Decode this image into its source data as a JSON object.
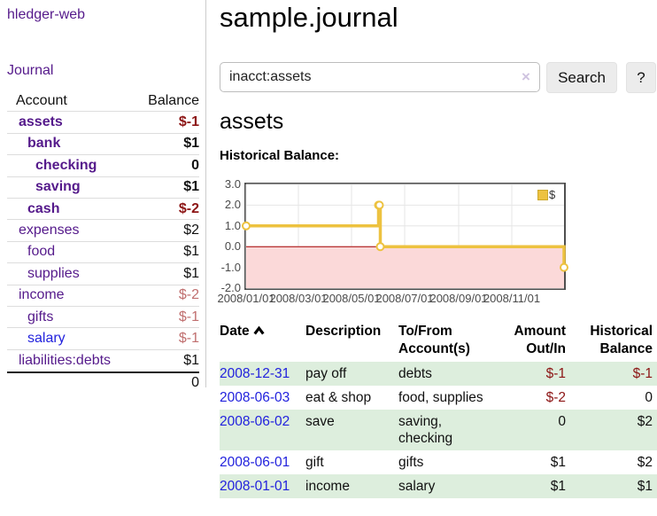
{
  "app": {
    "brand": "hledger-web"
  },
  "colors": {
    "link_purple": "#551a8b",
    "link_blue": "#2222dd",
    "negative_strong": "#8c1414",
    "negative_muted": "#c06f6f",
    "row_green": "#ddeedd",
    "chart_line": "#EDC240"
  },
  "sidebar": {
    "journal_link": "Journal",
    "accounts": {
      "header_account": "Account",
      "header_balance": "Balance",
      "rows": [
        {
          "name": "assets",
          "balance": "$-1"
        },
        {
          "name": "bank",
          "balance": "$1"
        },
        {
          "name": "checking",
          "balance": "0"
        },
        {
          "name": "saving",
          "balance": "$1"
        },
        {
          "name": "cash",
          "balance": "$-2"
        },
        {
          "name": "expenses",
          "balance": "$2"
        },
        {
          "name": "food",
          "balance": "$1"
        },
        {
          "name": "supplies",
          "balance": "$1"
        },
        {
          "name": "income",
          "balance": "$-2"
        },
        {
          "name": "gifts",
          "balance": "$-1"
        },
        {
          "name": "salary",
          "balance": "$-1"
        },
        {
          "name": "liabilities:debts",
          "balance": "$1"
        }
      ],
      "total": "0"
    }
  },
  "main": {
    "title": "sample.journal",
    "search": {
      "value": "inacct:assets",
      "clear": "×",
      "button": "Search",
      "help": "?"
    },
    "account_title": "assets",
    "chart_heading": "Historical Balance:"
  },
  "chart_data": {
    "type": "line",
    "step": true,
    "title": "Historical Balance",
    "series": [
      {
        "name": "$",
        "color": "#EDC240",
        "points": [
          [
            "2008-01-01",
            1
          ],
          [
            "2008-06-01",
            2
          ],
          [
            "2008-06-02",
            2
          ],
          [
            "2008-06-03",
            0
          ],
          [
            "2008-12-31",
            -1
          ]
        ]
      }
    ],
    "x_range": [
      "2008-01-01",
      "2008-12-31"
    ],
    "x_ticks": [
      "2008/01/01",
      "2008/03/01",
      "2008/05/01",
      "2008/07/01",
      "2008/09/01",
      "2008/11/01"
    ],
    "y_ticks": [
      3.0,
      2.0,
      1.0,
      0.0,
      -1.0,
      -2.0
    ],
    "y_tick_labels": [
      "3.0",
      "2.0",
      "1.0",
      "0.0",
      "-1.0",
      "-2.0"
    ],
    "ylim": [
      -2,
      3
    ],
    "grid": true,
    "negative_region": {
      "from": -2,
      "to": 0,
      "fill": "#fbd9d9",
      "line_color": "#a40000"
    },
    "legend": {
      "position": "top-right",
      "label": "$",
      "swatch_color": "#EDC240"
    }
  },
  "register": {
    "headers": {
      "date": "Date",
      "description": "Description",
      "tofrom": "To/From Account(s)",
      "amount": "Amount Out/In",
      "balance": "Historical Balance"
    },
    "rows": [
      {
        "date": "2008-12-31",
        "description": "pay off",
        "accounts": "debts",
        "amount": "$-1",
        "balance": "$-1"
      },
      {
        "date": "2008-06-03",
        "description": "eat & shop",
        "accounts": "food, supplies",
        "amount": "$-2",
        "balance": "0"
      },
      {
        "date": "2008-06-02",
        "description": "save",
        "accounts": "saving, checking",
        "amount": "0",
        "balance": "$2"
      },
      {
        "date": "2008-06-01",
        "description": "gift",
        "accounts": "gifts",
        "amount": "$1",
        "balance": "$2"
      },
      {
        "date": "2008-01-01",
        "description": "income",
        "accounts": "salary",
        "amount": "$1",
        "balance": "$1"
      }
    ]
  }
}
